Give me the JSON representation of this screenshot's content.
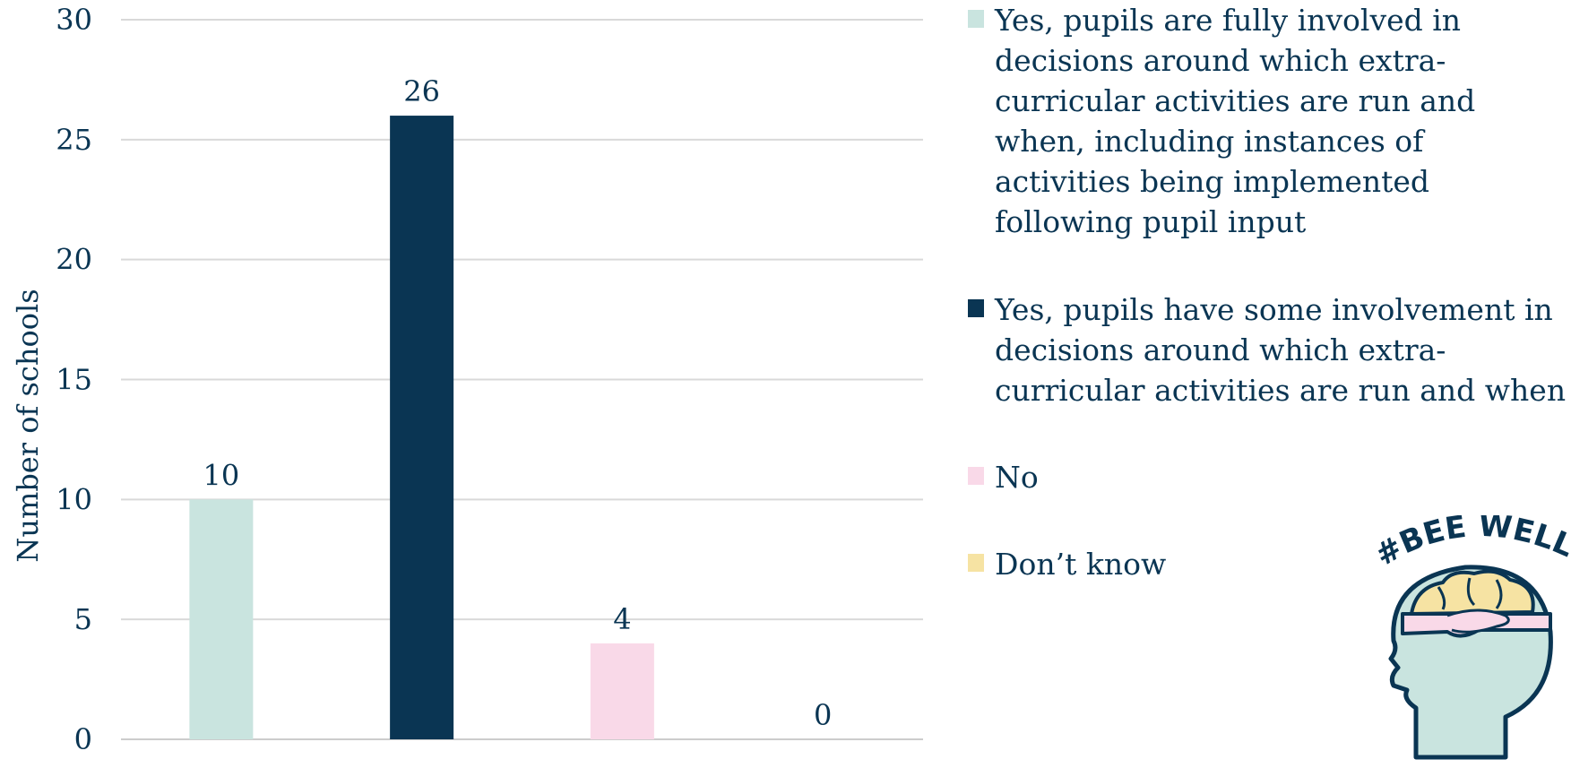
{
  "chart_data": {
    "type": "bar",
    "ylabel": "Number of schools",
    "ylim": [
      0,
      30
    ],
    "yticks": [
      "0",
      "5",
      "10",
      "15",
      "20",
      "25",
      "30"
    ],
    "grid": true,
    "legend_position": "right",
    "series": [
      {
        "name": "Yes, pupils are fully involved in decisions around which extra-curricular activities are run and when, including instances of activities being implemented following pupil input",
        "value": 10,
        "label": "10",
        "color": "#c9e4df"
      },
      {
        "name": "Yes, pupils have some involvement in decisions around which extra-curricular activities are run and when",
        "value": 26,
        "label": "26",
        "color": "#0a3553"
      },
      {
        "name": "No",
        "value": 4,
        "label": "4",
        "color": "#f9d9e8"
      },
      {
        "name": "Don’t know",
        "value": 0,
        "label": "0",
        "color": "#f6e3a3"
      }
    ]
  },
  "logo": {
    "text": "#BEE WELL",
    "icon": "head-brain-hands-icon"
  }
}
